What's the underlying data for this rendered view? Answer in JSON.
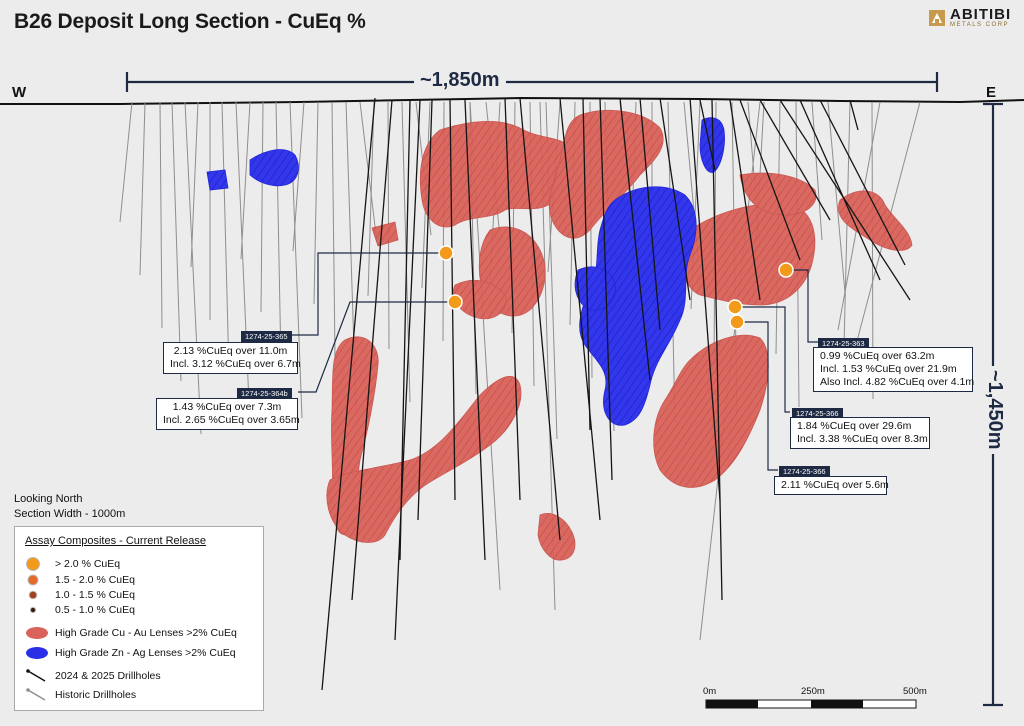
{
  "title": "B26 Deposit Long Section - CuEq %",
  "logo": {
    "word": "ABITIBI",
    "sub": "METALS CORP"
  },
  "compass": {
    "west": "W",
    "east": "E"
  },
  "dimensions": {
    "width_label": "~1,850m",
    "depth_label": "~1,450m"
  },
  "callouts": [
    {
      "tag": "1274-25-365",
      "lines": [
        "2.13 %CuEq over 11.0m",
        "Incl. 3.12 %CuEq over 6.7m"
      ]
    },
    {
      "tag": "1274-25-364b",
      "lines": [
        "1.43 %CuEq over 7.3m",
        "Incl. 2.65 %CuEq over 3.65m"
      ]
    },
    {
      "tag": "1274-25-363",
      "lines": [
        "0.99 %CuEq over 63.2m",
        "Incl. 1.53 %CuEq over 21.9m",
        "Also Incl. 4.82 %CuEq over 4.1m"
      ]
    },
    {
      "tag": "1274-25-366",
      "lines": [
        "1.84 %CuEq over 29.6m",
        "Incl. 3.38 %CuEq over 8.3m"
      ]
    },
    {
      "tag": "1274-25-366",
      "lines": [
        "2.11 %CuEq over 5.6m"
      ]
    }
  ],
  "view": {
    "line1": "Looking North",
    "line2": "Section Width - 1000m"
  },
  "legend": {
    "title": "Assay Composites - Current Release",
    "items": [
      {
        "label": "> 2.0 % CuEq",
        "icon": "orange-large-dot"
      },
      {
        "label": "1.5 - 2.0 % CuEq",
        "icon": "orange-medium-dot"
      },
      {
        "label": "1.0 - 1.5 % CuEq",
        "icon": "brown-small-dot"
      },
      {
        "label": "0.5 - 1.0 % CuEq",
        "icon": "dark-tiny-dot"
      },
      {
        "label": "High Grade Cu - Au Lenses >2% CuEq",
        "icon": "red-lens"
      },
      {
        "label": "High Grade Zn - Ag Lenses >2% CuEq",
        "icon": "blue-lens"
      },
      {
        "label": "2024 & 2025 Drillholes",
        "icon": "black-drillhole"
      },
      {
        "label": "Historic Drillholes",
        "icon": "grey-drillhole"
      }
    ]
  },
  "scale": {
    "labels": [
      "0m",
      "250m",
      "500m"
    ]
  },
  "colors": {
    "cu_lens": "#d9625a",
    "zn_lens": "#2a2ee6",
    "assay": "#f39a1a",
    "frame": "#1e2a44",
    "historic": "#8e8e8e",
    "recent": "#151515"
  }
}
